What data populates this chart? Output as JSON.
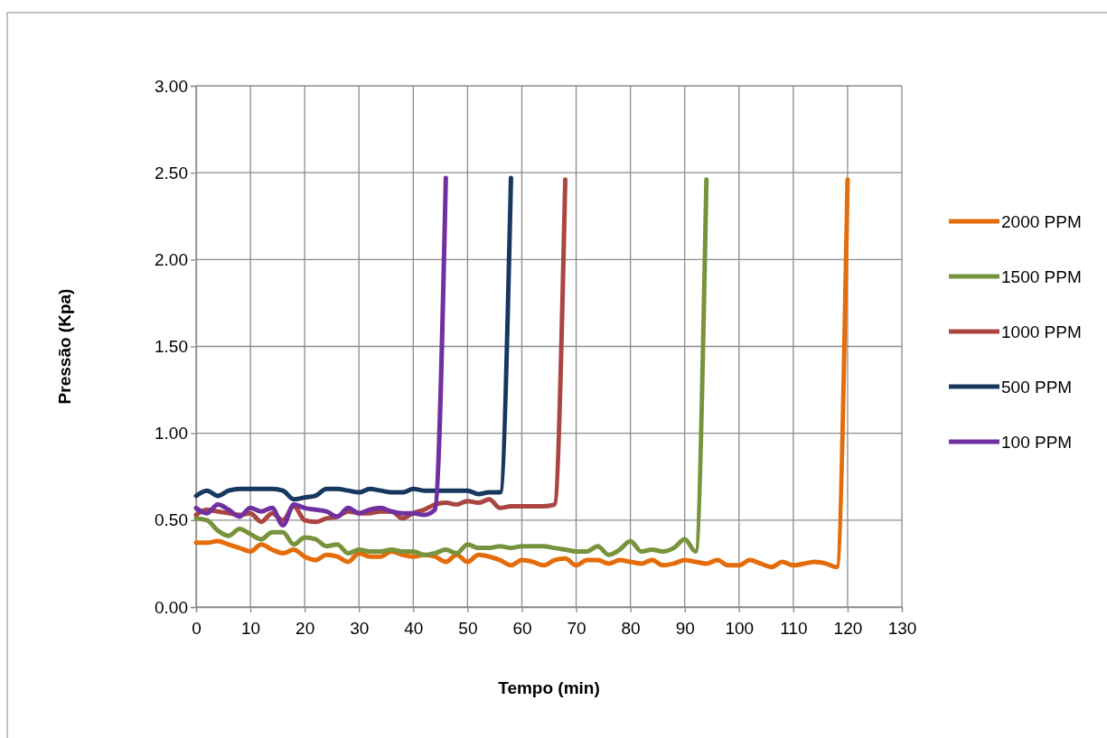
{
  "chart_data": {
    "type": "line",
    "xlabel": "Tempo (min)",
    "ylabel": "Pressão (Kpa)",
    "xlim": [
      0,
      130
    ],
    "xticks": [
      0,
      10,
      20,
      30,
      40,
      50,
      60,
      70,
      80,
      90,
      100,
      110,
      120,
      130
    ],
    "ylim": [
      0,
      3
    ],
    "yticks": [
      {
        "value": 0,
        "label": "0.00"
      },
      {
        "value": 0.5,
        "label": "0.50"
      },
      {
        "value": 1,
        "label": "1.00"
      },
      {
        "value": 1.5,
        "label": "1.50"
      },
      {
        "value": 2,
        "label": "2.00"
      },
      {
        "value": 2.5,
        "label": "2.50"
      },
      {
        "value": 3,
        "label": "3.00"
      }
    ],
    "grid": true,
    "legend": "right",
    "marker": "none",
    "line_style": "solid",
    "series": [
      {
        "name": "2000 PPM",
        "color": "#e46c0a",
        "x": [
          0,
          2,
          4,
          6,
          8,
          10,
          12,
          14,
          16,
          18,
          20,
          22,
          24,
          26,
          28,
          30,
          32,
          34,
          36,
          38,
          40,
          42,
          44,
          46,
          48,
          50,
          52,
          54,
          56,
          58,
          60,
          62,
          64,
          66,
          68,
          70,
          72,
          74,
          76,
          78,
          80,
          82,
          84,
          86,
          88,
          90,
          92,
          94,
          96,
          98,
          100,
          102,
          104,
          106,
          108,
          110,
          112,
          114,
          116,
          118,
          120
        ],
        "values": [
          0.37,
          0.37,
          0.38,
          0.36,
          0.34,
          0.32,
          0.36,
          0.33,
          0.31,
          0.33,
          0.29,
          0.27,
          0.3,
          0.29,
          0.26,
          0.31,
          0.29,
          0.29,
          0.32,
          0.3,
          0.29,
          0.3,
          0.29,
          0.26,
          0.3,
          0.26,
          0.3,
          0.29,
          0.27,
          0.24,
          0.27,
          0.26,
          0.24,
          0.27,
          0.28,
          0.24,
          0.27,
          0.27,
          0.25,
          0.27,
          0.26,
          0.25,
          0.27,
          0.24,
          0.25,
          0.27,
          0.26,
          0.25,
          0.27,
          0.24,
          0.24,
          0.27,
          0.25,
          0.23,
          0.26,
          0.24,
          0.25,
          0.26,
          0.25,
          0.23,
          2.46
        ]
      },
      {
        "name": "1500 PPM",
        "color": "#77933c",
        "x": [
          0,
          2,
          4,
          6,
          8,
          10,
          12,
          14,
          16,
          18,
          20,
          22,
          24,
          26,
          28,
          30,
          32,
          34,
          36,
          38,
          40,
          42,
          44,
          46,
          48,
          50,
          52,
          54,
          56,
          58,
          60,
          62,
          64,
          66,
          68,
          70,
          72,
          74,
          76,
          78,
          80,
          82,
          84,
          86,
          88,
          90,
          92,
          94
        ],
        "values": [
          0.51,
          0.5,
          0.44,
          0.41,
          0.45,
          0.42,
          0.39,
          0.43,
          0.43,
          0.36,
          0.4,
          0.39,
          0.35,
          0.36,
          0.31,
          0.33,
          0.32,
          0.32,
          0.33,
          0.32,
          0.32,
          0.3,
          0.31,
          0.33,
          0.31,
          0.36,
          0.34,
          0.34,
          0.35,
          0.34,
          0.35,
          0.35,
          0.35,
          0.34,
          0.33,
          0.32,
          0.32,
          0.35,
          0.3,
          0.33,
          0.38,
          0.32,
          0.33,
          0.32,
          0.34,
          0.39,
          0.32,
          2.46
        ]
      },
      {
        "name": "1000 PPM",
        "color": "#ab4542",
        "x": [
          0,
          2,
          4,
          6,
          8,
          10,
          12,
          14,
          16,
          18,
          20,
          22,
          24,
          26,
          28,
          30,
          32,
          34,
          36,
          38,
          40,
          42,
          44,
          46,
          48,
          50,
          52,
          54,
          56,
          58,
          60,
          62,
          64,
          66,
          68
        ],
        "values": [
          0.53,
          0.56,
          0.55,
          0.54,
          0.53,
          0.54,
          0.49,
          0.54,
          0.5,
          0.58,
          0.5,
          0.49,
          0.51,
          0.52,
          0.55,
          0.54,
          0.54,
          0.55,
          0.55,
          0.51,
          0.54,
          0.56,
          0.59,
          0.6,
          0.59,
          0.61,
          0.6,
          0.62,
          0.57,
          0.58,
          0.58,
          0.58,
          0.58,
          0.59,
          2.46
        ]
      },
      {
        "name": "500 PPM",
        "color": "#17375e",
        "x": [
          0,
          2,
          4,
          6,
          8,
          10,
          12,
          14,
          16,
          18,
          20,
          22,
          24,
          26,
          28,
          30,
          32,
          34,
          36,
          38,
          40,
          42,
          44,
          46,
          48,
          50,
          52,
          54,
          56,
          58
        ],
        "values": [
          0.64,
          0.67,
          0.64,
          0.67,
          0.68,
          0.68,
          0.68,
          0.68,
          0.67,
          0.62,
          0.63,
          0.64,
          0.68,
          0.68,
          0.67,
          0.66,
          0.68,
          0.67,
          0.66,
          0.66,
          0.68,
          0.67,
          0.67,
          0.67,
          0.67,
          0.67,
          0.65,
          0.66,
          0.66,
          2.47
        ]
      },
      {
        "name": "100 PPM",
        "color": "#7030a0",
        "x": [
          0,
          2,
          4,
          6,
          8,
          10,
          12,
          14,
          16,
          18,
          20,
          22,
          24,
          26,
          28,
          30,
          32,
          34,
          36,
          38,
          40,
          42,
          44,
          46
        ],
        "values": [
          0.57,
          0.54,
          0.59,
          0.56,
          0.52,
          0.57,
          0.55,
          0.57,
          0.47,
          0.59,
          0.57,
          0.56,
          0.55,
          0.52,
          0.57,
          0.54,
          0.56,
          0.57,
          0.55,
          0.54,
          0.54,
          0.53,
          0.56,
          2.47
        ]
      }
    ]
  }
}
